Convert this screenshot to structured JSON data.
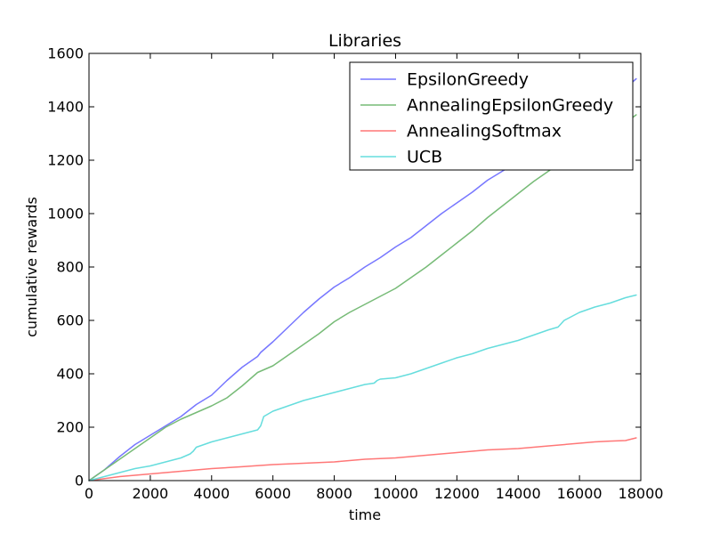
{
  "chart_data": {
    "type": "line",
    "title": "Libraries",
    "xlabel": "time",
    "ylabel": "cumulative rewards",
    "xlim": [
      0,
      18000
    ],
    "ylim": [
      0,
      1600
    ],
    "xticks": [
      0,
      2000,
      4000,
      6000,
      8000,
      10000,
      12000,
      14000,
      16000,
      18000
    ],
    "yticks": [
      0,
      200,
      400,
      600,
      800,
      1000,
      1200,
      1400,
      1600
    ],
    "grid": false,
    "legend_position": "top-right",
    "series": [
      {
        "name": "EpsilonGreedy",
        "color": "#7777ff",
        "x": [
          0,
          500,
          1000,
          1500,
          2000,
          2500,
          3000,
          3500,
          4000,
          4500,
          5000,
          5500,
          5600,
          5700,
          6000,
          6500,
          7000,
          7500,
          8000,
          8500,
          9000,
          9500,
          10000,
          10500,
          11000,
          11500,
          12000,
          12500,
          13000,
          13500,
          14000,
          14500,
          15000,
          15500,
          16000,
          16500,
          17000,
          17500,
          17850
        ],
        "y": [
          0,
          40,
          90,
          135,
          170,
          205,
          240,
          285,
          320,
          375,
          425,
          465,
          480,
          490,
          520,
          575,
          630,
          680,
          725,
          760,
          800,
          835,
          875,
          910,
          955,
          1000,
          1040,
          1080,
          1125,
          1160,
          1195,
          1230,
          1275,
          1310,
          1350,
          1390,
          1430,
          1470,
          1505
        ]
      },
      {
        "name": "AnnealingEpsilonGreedy",
        "color": "#77bb77",
        "x": [
          0,
          500,
          1000,
          1500,
          2000,
          2500,
          3000,
          3500,
          4000,
          4500,
          5000,
          5500,
          6000,
          6500,
          7000,
          7500,
          8000,
          8500,
          9000,
          9500,
          10000,
          10500,
          11000,
          11500,
          12000,
          12500,
          13000,
          13500,
          14000,
          14500,
          15000,
          15500,
          16000,
          16500,
          17000,
          17500,
          17850
        ],
        "y": [
          0,
          40,
          80,
          120,
          160,
          200,
          230,
          255,
          280,
          310,
          355,
          405,
          430,
          470,
          510,
          550,
          595,
          630,
          660,
          690,
          720,
          760,
          800,
          845,
          890,
          935,
          985,
          1030,
          1075,
          1120,
          1160,
          1200,
          1235,
          1270,
          1305,
          1340,
          1370
        ]
      },
      {
        "name": "AnnealingSoftmax",
        "color": "#ff7777",
        "x": [
          0,
          1000,
          2000,
          3000,
          4000,
          5000,
          6000,
          7000,
          8000,
          9000,
          10000,
          11000,
          12000,
          13000,
          14000,
          15000,
          16000,
          16500,
          17000,
          17500,
          17850
        ],
        "y": [
          0,
          15,
          25,
          35,
          45,
          52,
          60,
          65,
          70,
          80,
          85,
          95,
          105,
          115,
          120,
          130,
          140,
          145,
          148,
          150,
          160
        ]
      },
      {
        "name": "UCB",
        "color": "#66dddd",
        "x": [
          0,
          500,
          1000,
          1500,
          2000,
          2500,
          3000,
          3300,
          3400,
          3500,
          4000,
          4500,
          5000,
          5500,
          5600,
          5700,
          6000,
          6500,
          7000,
          7500,
          8000,
          8500,
          9000,
          9300,
          9400,
          9500,
          10000,
          10500,
          11000,
          11500,
          12000,
          12500,
          13000,
          13500,
          14000,
          14500,
          15000,
          15300,
          15500,
          16000,
          16500,
          17000,
          17500,
          17850
        ],
        "y": [
          0,
          15,
          30,
          45,
          55,
          70,
          85,
          100,
          110,
          125,
          145,
          160,
          175,
          190,
          205,
          240,
          260,
          280,
          300,
          315,
          330,
          345,
          360,
          365,
          375,
          380,
          385,
          400,
          420,
          440,
          460,
          475,
          495,
          510,
          525,
          545,
          565,
          575,
          600,
          630,
          650,
          665,
          685,
          695
        ]
      }
    ]
  }
}
